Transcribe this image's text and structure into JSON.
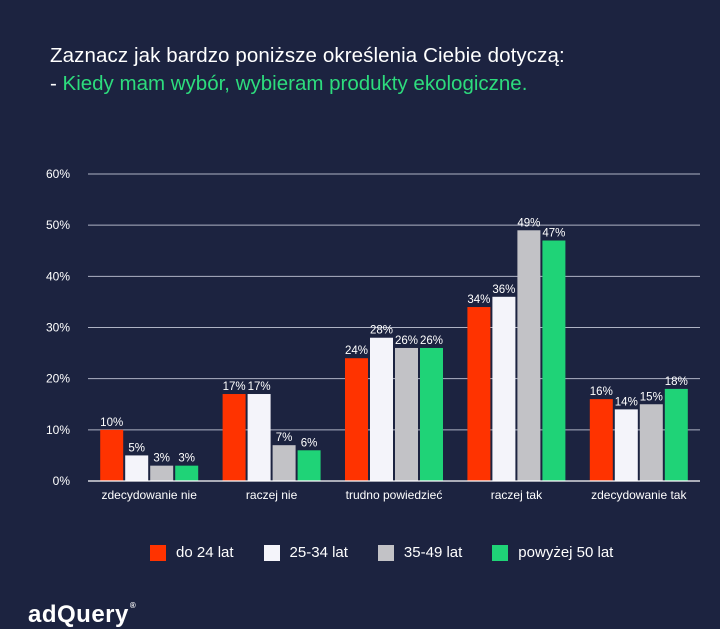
{
  "title": "Zaznacz jak bardzo poniższe określenia Ciebie dotyczą:",
  "subtitle_dash": "-",
  "subtitle": "Kiedy mam wybór, wybieram produkty ekologiczne.",
  "brand": "adQuery",
  "brand_mark": "®",
  "chart_data": {
    "type": "bar",
    "title": "Zaznacz jak bardzo poniższe określenia Ciebie dotyczą:",
    "subtitle": "Kiedy mam wybór, wybieram produkty ekologiczne.",
    "xlabel": "",
    "ylabel": "",
    "ylim": [
      0,
      60
    ],
    "yticks": [
      0,
      10,
      20,
      30,
      40,
      50,
      60
    ],
    "ytick_labels": [
      "0%",
      "10%",
      "20%",
      "30%",
      "40%",
      "50%",
      "60%"
    ],
    "grid": true,
    "legend_position": "bottom",
    "categories": [
      "zdecydowanie nie",
      "raczej nie",
      "trudno powiedzieć",
      "raczej tak",
      "zdecydowanie tak"
    ],
    "series": [
      {
        "name": "do 24 lat",
        "color": "#ff3300",
        "values": [
          10,
          17,
          24,
          34,
          16
        ]
      },
      {
        "name": "25-34 lat",
        "color": "#f4f4fa",
        "values": [
          5,
          17,
          28,
          36,
          14
        ]
      },
      {
        "name": "35-49 lat",
        "color": "#c2c2c6",
        "values": [
          3,
          7,
          26,
          49,
          15
        ]
      },
      {
        "name": "powyżej 50 lat",
        "color": "#1fd377",
        "values": [
          3,
          6,
          26,
          47,
          18
        ]
      }
    ]
  }
}
